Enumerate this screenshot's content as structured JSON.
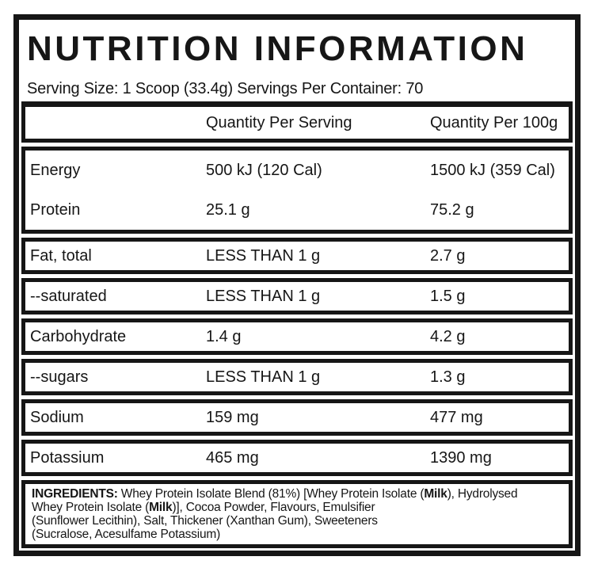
{
  "label": {
    "title": "NUTRITION INFORMATION",
    "serving_line": "Serving Size: 1 Scoop (33.4g) Servings Per Container: 70",
    "columns": {
      "per_serving": "Quantity Per Serving",
      "per_100g": "Quantity Per 100g"
    },
    "rows": {
      "energy": {
        "name": "Energy",
        "per_serving": "500 kJ (120 Cal)",
        "per_100g": "1500 kJ (359 Cal)"
      },
      "protein": {
        "name": "Protein",
        "per_serving": "25.1 g",
        "per_100g": "75.2 g"
      },
      "fat_total": {
        "name": "Fat, total",
        "per_serving": "LESS THAN 1 g",
        "per_100g": "2.7 g"
      },
      "saturated": {
        "name": "--saturated",
        "per_serving": "LESS THAN 1 g",
        "per_100g": "1.5 g"
      },
      "carbohydrate": {
        "name": "Carbohydrate",
        "per_serving": "1.4 g",
        "per_100g": "4.2 g"
      },
      "sugars": {
        "name": "--sugars",
        "per_serving": "LESS THAN 1 g",
        "per_100g": "1.3 g"
      },
      "sodium": {
        "name": "Sodium",
        "per_serving": "159 mg",
        "per_100g": "477 mg"
      },
      "potassium": {
        "name": "Potassium",
        "per_serving": "465 mg",
        "per_100g": "1390 mg"
      }
    },
    "ingredients": {
      "lines": [
        [
          {
            "t": "INGREDIENTS:",
            "b": true
          },
          {
            "t": " Whey Protein Isolate Blend (81%) [Whey Protein Isolate (",
            "b": false
          },
          {
            "t": "Milk",
            "b": true
          },
          {
            "t": "), Hydrolysed",
            "b": false
          }
        ],
        [
          {
            "t": "Whey Protein Isolate (",
            "b": false
          },
          {
            "t": "Milk",
            "b": true
          },
          {
            "t": ")], Cocoa Powder, Flavours, Emulsifier",
            "b": false
          }
        ],
        [
          {
            "t": "(Sunflower Lecithin), Salt, Thickener (Xanthan Gum), Sweeteners",
            "b": false
          }
        ],
        [
          {
            "t": "(Sucralose, Acesulfame Potassium)",
            "b": false
          }
        ]
      ]
    },
    "colors": {
      "ink": "#161616",
      "paper": "#ffffff"
    }
  }
}
